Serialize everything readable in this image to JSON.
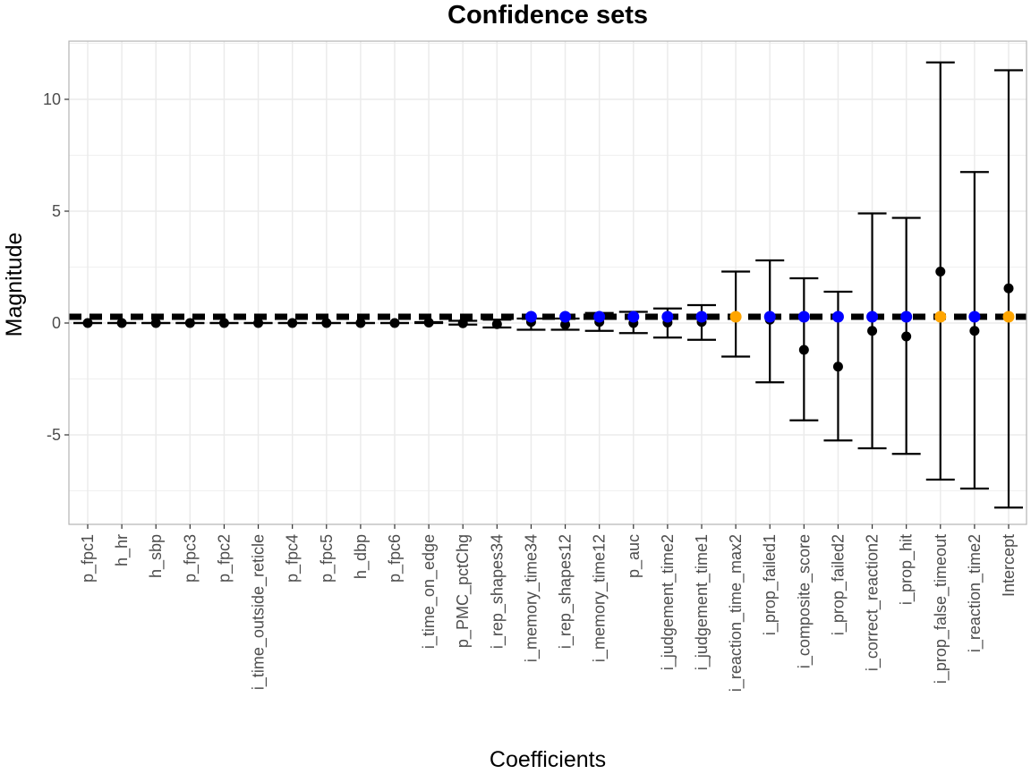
{
  "chart_data": {
    "type": "errorbar",
    "title": "Confidence sets",
    "xlabel": "Coefficients",
    "ylabel": "Magnitude",
    "ylim": [
      -9.0,
      12.6
    ],
    "yticks": [
      -5,
      0,
      5,
      10
    ],
    "grid": true,
    "reference_line": {
      "style": "dashed",
      "y": 0.28
    },
    "categories": [
      "p_fpc1",
      "h_hr",
      "h_sbp",
      "p_fpc3",
      "p_fpc2",
      "i_time_outside_reticle",
      "p_fpc4",
      "p_fpc5",
      "h_dbp",
      "p_fpc6",
      "i_time_on_edge",
      "p_PMC_pctChg",
      "i_rep_shapes34",
      "i_memory_time34",
      "i_rep_shapes12",
      "i_memory_time12",
      "p_auc",
      "i_judgement_time2",
      "i_judgement_time1",
      "i_reaction_time_max2",
      "i_prop_failed1",
      "i_composite_score",
      "i_prop_failed2",
      "i_correct_reaction2",
      "i_prop_hit",
      "i_prop_false_timeout",
      "i_reaction_time2",
      "Intercept"
    ],
    "estimates": [
      0.0,
      0.0,
      0.0,
      0.0,
      0.0,
      0.0,
      0.0,
      0.0,
      0.0,
      0.0,
      0.02,
      -0.01,
      -0.05,
      0.05,
      -0.07,
      0.05,
      0.0,
      0.02,
      0.05,
      0.3,
      0.15,
      -1.2,
      -1.95,
      -0.35,
      -0.6,
      2.3,
      -0.35,
      1.55
    ],
    "lower": [
      0.0,
      0.0,
      0.0,
      0.0,
      0.0,
      0.0,
      0.0,
      0.0,
      0.0,
      0.0,
      0.0,
      -0.07,
      -0.2,
      -0.3,
      -0.3,
      -0.35,
      -0.45,
      -0.65,
      -0.75,
      -1.5,
      -2.65,
      -4.35,
      -5.25,
      -5.6,
      -5.85,
      -7.0,
      -7.4,
      -8.25
    ],
    "upper": [
      0.0,
      0.0,
      0.0,
      0.0,
      0.0,
      0.0,
      0.0,
      0.0,
      0.0,
      0.0,
      0.04,
      0.1,
      0.15,
      0.2,
      0.2,
      0.45,
      0.5,
      0.65,
      0.8,
      2.3,
      2.8,
      2.0,
      1.4,
      4.9,
      4.7,
      11.65,
      6.75,
      11.3
    ],
    "markers": [
      null,
      null,
      null,
      null,
      null,
      null,
      null,
      null,
      null,
      null,
      null,
      null,
      null,
      "blue",
      "blue",
      "blue",
      "blue",
      "blue",
      "blue",
      "orange",
      "blue",
      "blue",
      "blue",
      "blue",
      "blue",
      "orange",
      "blue",
      "orange"
    ],
    "marker_y": 0.28,
    "colors": {
      "estimate": "#000000",
      "blue": "#0000ff",
      "orange": "#ffa500",
      "grid": "#ebebeb",
      "panel_border": "#b3b3b3",
      "tick_label": "#4d4d4d"
    }
  }
}
